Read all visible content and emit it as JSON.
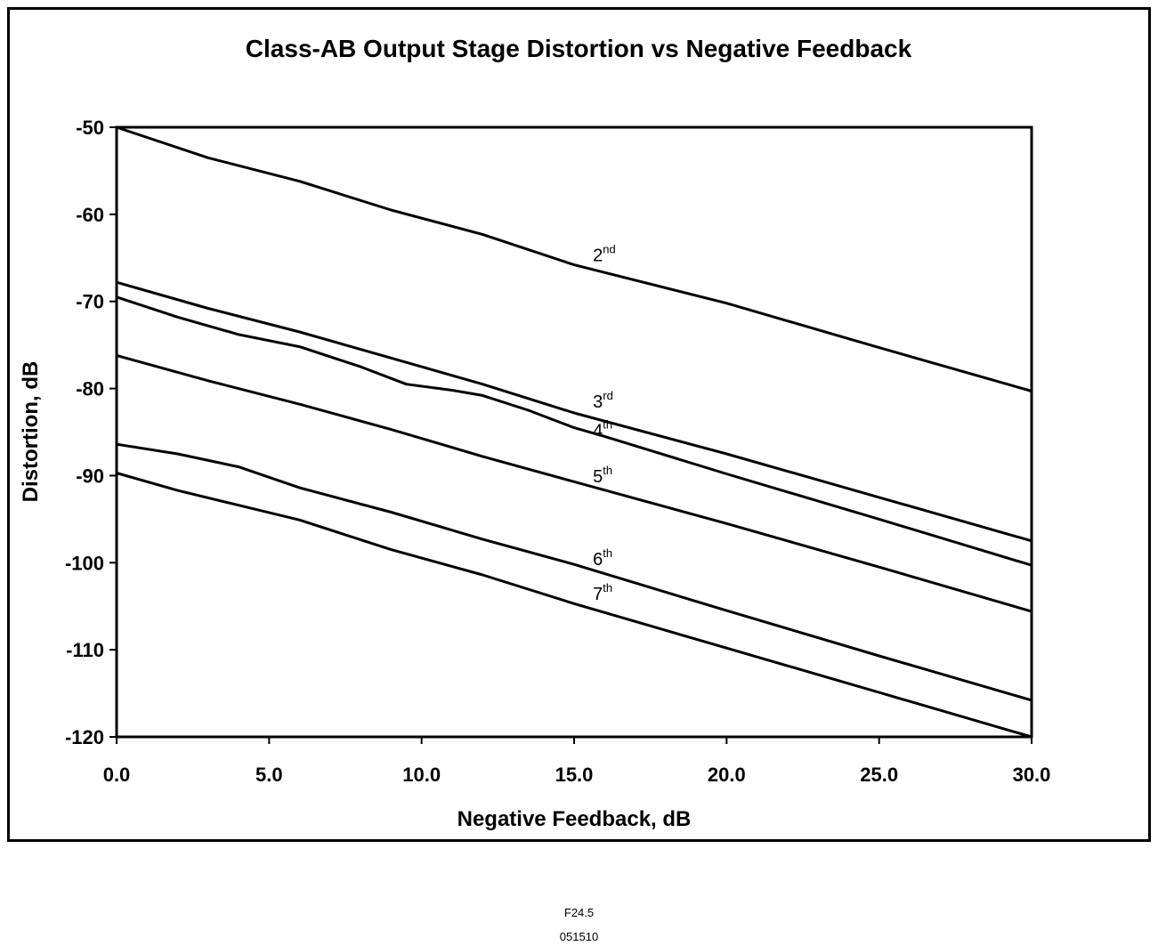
{
  "footer": {
    "figure_code": "F24.5",
    "date_code": "051510"
  },
  "chart_data": {
    "type": "line",
    "title": "Class-AB Output Stage Distortion vs Negative Feedback",
    "xlabel": "Negative Feedback, dB",
    "ylabel": "Distortion, dB",
    "xlim": [
      0,
      30
    ],
    "ylim": [
      -120,
      -50
    ],
    "x_ticks": [
      0,
      5,
      10,
      15,
      20,
      25,
      30
    ],
    "x_tick_labels": [
      "0.0",
      "5.0",
      "10.0",
      "15.0",
      "20.0",
      "25.0",
      "30.0"
    ],
    "y_ticks": [
      -50,
      -60,
      -70,
      -80,
      -90,
      -100,
      -110,
      -120
    ],
    "y_tick_labels": [
      "-50",
      "-60",
      "-70",
      "-80",
      "-90",
      "-100",
      "-110",
      "-120"
    ],
    "grid": false,
    "legend": "none",
    "line_color": "#000000",
    "series": [
      {
        "label": "2",
        "label_sup": "nd",
        "label_at": [
          15.5,
          -66
        ],
        "points": [
          [
            0,
            -50
          ],
          [
            3,
            -53.5
          ],
          [
            6,
            -56.2
          ],
          [
            9,
            -59.5
          ],
          [
            12,
            -62.3
          ],
          [
            15,
            -65.8
          ],
          [
            20,
            -70.2
          ],
          [
            25,
            -75.3
          ],
          [
            30,
            -80.3
          ]
        ]
      },
      {
        "label": "3",
        "label_sup": "rd",
        "label_at": [
          15.5,
          -82.8
        ],
        "points": [
          [
            0,
            -67.8
          ],
          [
            3,
            -70.8
          ],
          [
            6,
            -73.5
          ],
          [
            9,
            -76.5
          ],
          [
            12,
            -79.5
          ],
          [
            15,
            -82.8
          ],
          [
            20,
            -87.5
          ],
          [
            25,
            -92.5
          ],
          [
            30,
            -97.5
          ]
        ]
      },
      {
        "label": "4",
        "label_sup": "th",
        "label_at": [
          15.5,
          -86.1
        ],
        "points": [
          [
            0,
            -69.5
          ],
          [
            2,
            -71.8
          ],
          [
            4,
            -73.8
          ],
          [
            6,
            -75.2
          ],
          [
            8,
            -77.5
          ],
          [
            9.5,
            -79.5
          ],
          [
            11,
            -80.2
          ],
          [
            12,
            -80.8
          ],
          [
            13.5,
            -82.5
          ],
          [
            15,
            -84.5
          ],
          [
            16,
            -85.5
          ],
          [
            20,
            -89.8
          ],
          [
            25,
            -95
          ],
          [
            30,
            -100.3
          ]
        ]
      },
      {
        "label": "5",
        "label_sup": "th",
        "label_at": [
          15.5,
          -91.4
        ],
        "points": [
          [
            0,
            -76.2
          ],
          [
            3,
            -79.1
          ],
          [
            6,
            -81.8
          ],
          [
            9,
            -84.7
          ],
          [
            12,
            -87.8
          ],
          [
            15,
            -90.7
          ],
          [
            20,
            -95.5
          ],
          [
            25,
            -100.5
          ],
          [
            30,
            -105.6
          ]
        ]
      },
      {
        "label": "6",
        "label_sup": "th",
        "label_at": [
          15.5,
          -100.9
        ],
        "points": [
          [
            0,
            -86.4
          ],
          [
            2,
            -87.5
          ],
          [
            4,
            -89
          ],
          [
            6,
            -91.4
          ],
          [
            9,
            -94.2
          ],
          [
            12,
            -97.3
          ],
          [
            15,
            -100.2
          ],
          [
            20,
            -105.5
          ],
          [
            25,
            -110.7
          ],
          [
            30,
            -115.8
          ]
        ]
      },
      {
        "label": "7",
        "label_sup": "th",
        "label_at": [
          15.5,
          -104.9
        ],
        "points": [
          [
            0,
            -89.7
          ],
          [
            2,
            -91.7
          ],
          [
            4,
            -93.4
          ],
          [
            6,
            -95.1
          ],
          [
            9,
            -98.5
          ],
          [
            12,
            -101.4
          ],
          [
            15,
            -104.7
          ],
          [
            20,
            -109.8
          ],
          [
            25,
            -114.9
          ],
          [
            30,
            -120
          ]
        ]
      }
    ]
  }
}
